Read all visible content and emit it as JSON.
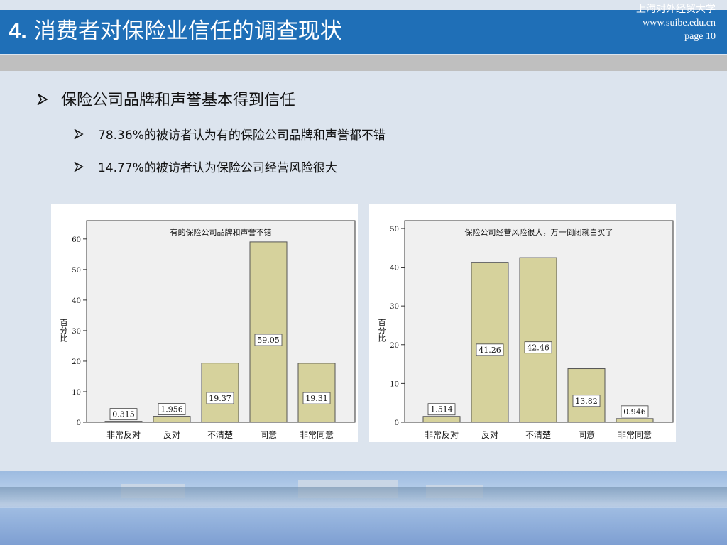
{
  "header": {
    "title_num": "4.",
    "title_text": "消费者对保险业信任的调查现状",
    "university": "上海对外经贸大学",
    "website": "www.suibe.edu.cn",
    "page": "page 10"
  },
  "bullets": {
    "main": "保险公司品牌和声誉基本得到信任",
    "sub1": "78.36%的被访者认为有的保险公司品牌和声誉都不错",
    "sub2": "14.77%的被访者认为保险公司经营风险很大"
  },
  "colors": {
    "bar_fill": "#d6d29c",
    "bar_stroke": "#555555",
    "title_bg": "#1f6fb7",
    "plot_bg": "#f0f0f0"
  },
  "chart_data": [
    {
      "type": "bar",
      "title": "有的保险公司品牌和声誉不错",
      "ylabel": "百分比",
      "categories": [
        "非常反对",
        "反对",
        "不清楚",
        "同意",
        "非常同意"
      ],
      "values": [
        0.315,
        1.956,
        19.37,
        59.05,
        19.31
      ],
      "value_labels": [
        "0.315",
        "1.956",
        "19.37",
        "59.05",
        "19.31"
      ],
      "yticks": [
        0,
        10,
        20,
        30,
        40,
        50,
        60
      ],
      "ylim": [
        0,
        66
      ]
    },
    {
      "type": "bar",
      "title": "保险公司经营风险很大，万一倒闭就白买了",
      "ylabel": "百分比",
      "categories": [
        "非常反对",
        "反对",
        "不清楚",
        "同意",
        "非常同意"
      ],
      "values": [
        1.514,
        41.26,
        42.46,
        13.82,
        0.946
      ],
      "value_labels": [
        "1.514",
        "41.26",
        "42.46",
        "13.82",
        "0.946"
      ],
      "yticks": [
        0,
        10,
        20,
        30,
        40,
        50
      ],
      "ylim": [
        0,
        52
      ]
    }
  ]
}
